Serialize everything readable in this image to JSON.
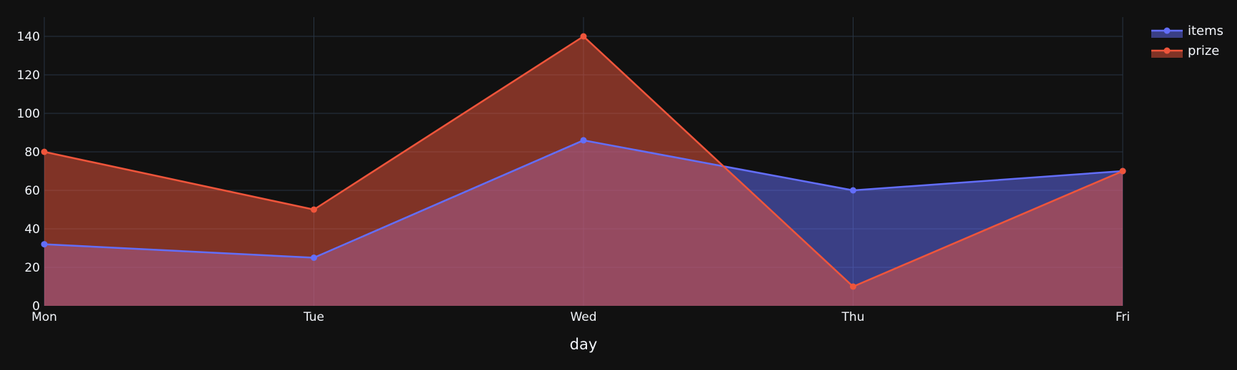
{
  "chart_data": {
    "type": "area",
    "title": "",
    "xlabel": "day",
    "ylabel": "",
    "categories": [
      "Mon",
      "Tue",
      "Wed",
      "Thu",
      "Fri"
    ],
    "ylim": [
      0,
      150
    ],
    "yticks": [
      0,
      20,
      40,
      60,
      80,
      100,
      120,
      140
    ],
    "grid": true,
    "legend_position": "top-right",
    "series": [
      {
        "name": "items",
        "values": [
          32,
          25,
          86,
          60,
          70
        ],
        "color": "#636efa",
        "fill": "rgba(99,110,250,0.5)"
      },
      {
        "name": "prize",
        "values": [
          80,
          50,
          140,
          10,
          70
        ],
        "color": "#ef553b",
        "fill": "rgba(239,85,59,0.5)"
      }
    ]
  },
  "colors": {
    "background": "#111111",
    "grid": "#283442",
    "text": "#f2f5fa"
  }
}
